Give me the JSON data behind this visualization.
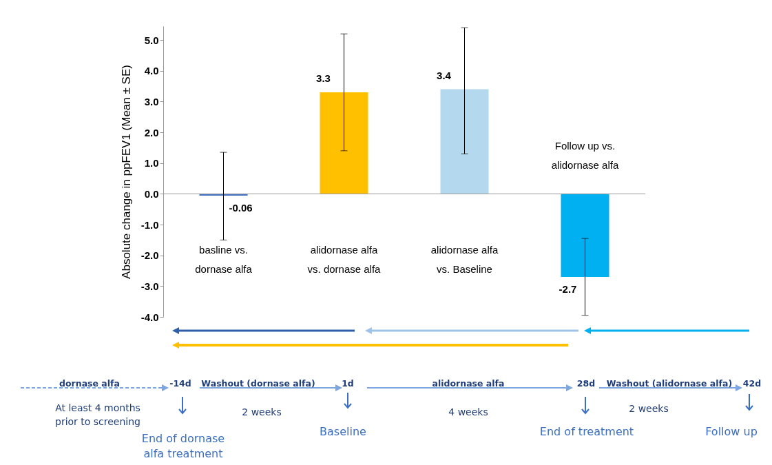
{
  "chart_data": {
    "type": "bar",
    "ylabel": "Absolute change in ppFEV1 (Mean ± SE)",
    "categories": [
      "basline vs. dornase alfa",
      "alidornase alfa vs. dornase alfa",
      "alidornase alfa vs. Baseline",
      "Follow up vs. alidornase alfa"
    ],
    "values": [
      -0.06,
      3.3,
      3.4,
      -2.7
    ],
    "colors": [
      "#4472c4",
      "#ffc000",
      "#b4d9ee",
      "#00b0f0"
    ],
    "errors": [
      [
        -1.5,
        1.35
      ],
      [
        1.4,
        5.2
      ],
      [
        1.3,
        5.4
      ],
      [
        -3.95,
        -1.45
      ]
    ],
    "data_labels": true,
    "ylim": [
      -4,
      5.45
    ],
    "yticks": [
      {
        "value": -4,
        "label": "-4.0"
      },
      {
        "value": -3,
        "label": "-3.0"
      },
      {
        "value": -2,
        "label": "-2.0"
      },
      {
        "value": -1,
        "label": "-1.0"
      },
      {
        "value": 0,
        "label": "0.0"
      },
      {
        "value": 1,
        "label": "1.0"
      },
      {
        "value": 2,
        "label": "2.0"
      },
      {
        "value": 3,
        "label": "3.0"
      },
      {
        "value": 4,
        "label": "4.0"
      },
      {
        "value": 5,
        "label": "5.0"
      }
    ],
    "legend": false,
    "annotations": [
      "dornase alfa",
      "-14d",
      "Washout (dornase alfa)",
      "1d",
      "alidornase alfa",
      "28d",
      "Washout (alidornase alfa)",
      "42d",
      "At least 4 months prior to screening",
      "2 weeks",
      "4 weeks",
      "2 weeks",
      "End of  dornase alfa treatment",
      "Baseline",
      "End of treatment",
      "Follow up"
    ]
  }
}
